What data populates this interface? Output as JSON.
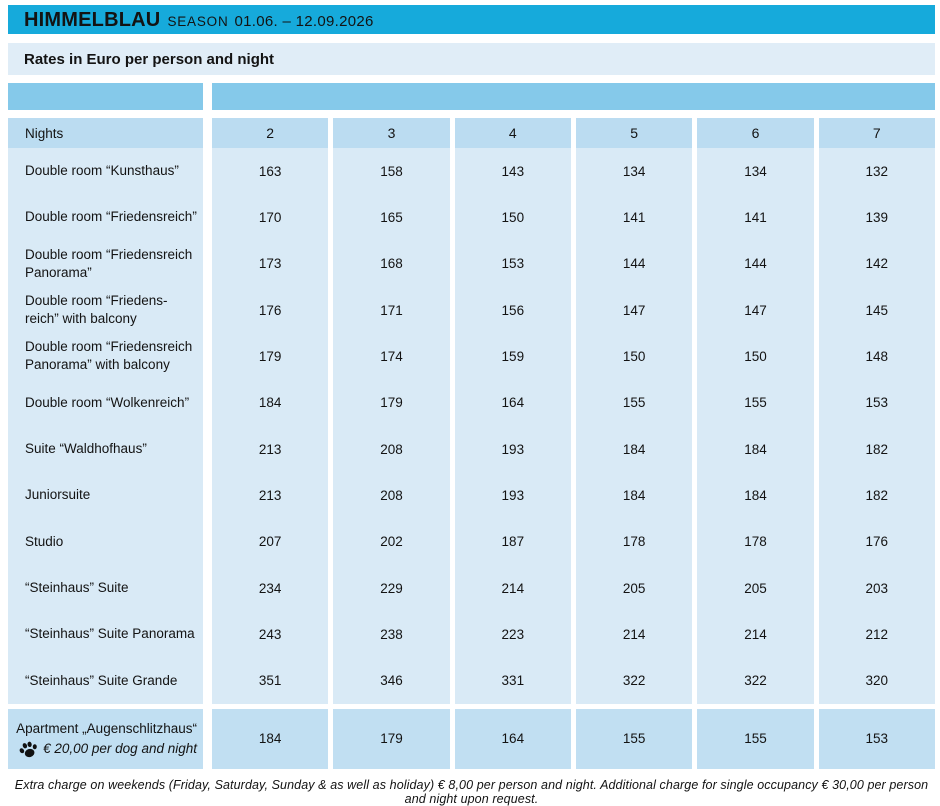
{
  "header": {
    "brand": "HIMMELBLAU",
    "season_label": "SEASON",
    "season_dates": "01.06. – 12.09.2026"
  },
  "subheader": "Rates in Euro per person and night",
  "table": {
    "corner_label": "Nights",
    "columns": [
      "2",
      "3",
      "4",
      "5",
      "6",
      "7"
    ],
    "rows": [
      {
        "label": "Double room “Kunsthaus”",
        "values": [
          "163",
          "158",
          "143",
          "134",
          "134",
          "132"
        ]
      },
      {
        "label": "Double room “Friedensreich”",
        "values": [
          "170",
          "165",
          "150",
          "141",
          "141",
          "139"
        ]
      },
      {
        "label": "Double room “Friedensreich\nPanorama”",
        "values": [
          "173",
          "168",
          "153",
          "144",
          "144",
          "142"
        ]
      },
      {
        "label": "Double room “Friedens-\nreich” with balcony",
        "values": [
          "176",
          "171",
          "156",
          "147",
          "147",
          "145"
        ]
      },
      {
        "label": "Double room “Friedensreich\nPanorama” with balcony",
        "values": [
          "179",
          "174",
          "159",
          "150",
          "150",
          "148"
        ]
      },
      {
        "label": "Double room “Wolkenreich”",
        "values": [
          "184",
          "179",
          "164",
          "155",
          "155",
          "153"
        ]
      },
      {
        "label": "Suite “Waldhofhaus”",
        "values": [
          "213",
          "208",
          "193",
          "184",
          "184",
          "182"
        ]
      },
      {
        "label": "Juniorsuite",
        "values": [
          "213",
          "208",
          "193",
          "184",
          "184",
          "182"
        ]
      },
      {
        "label": "Studio",
        "values": [
          "207",
          "202",
          "187",
          "178",
          "178",
          "176"
        ]
      },
      {
        "label": "“Steinhaus” Suite",
        "values": [
          "234",
          "229",
          "214",
          "205",
          "205",
          "203"
        ]
      },
      {
        "label": "“Steinhaus” Suite Panorama",
        "values": [
          "243",
          "238",
          "223",
          "214",
          "214",
          "212"
        ]
      },
      {
        "label": "“Steinhaus” Suite Grande",
        "values": [
          "351",
          "346",
          "331",
          "322",
          "322",
          "320"
        ]
      }
    ],
    "apartment_row": {
      "label": "Apartment „Augenschlitzhaus“",
      "dog_note": "€ 20,00 per dog and night",
      "icon": "paw-icon",
      "values": [
        "184",
        "179",
        "164",
        "155",
        "155",
        "153"
      ]
    }
  },
  "footer": "Extra charge on weekends (Friday, Saturday, Sunday & as well as holiday) € 8,00 per person and night. Additional charge for single occupancy € 30,00 per person and night upon request.",
  "colors": {
    "title_band": "#16AADB",
    "subheader_band": "#E0EDF7",
    "accent_band": "#85C9EA",
    "header_row": "#BBDCF1",
    "data_row": "#D9EAF6",
    "apartment_row": "#C1DFF2",
    "text": "#131313"
  }
}
